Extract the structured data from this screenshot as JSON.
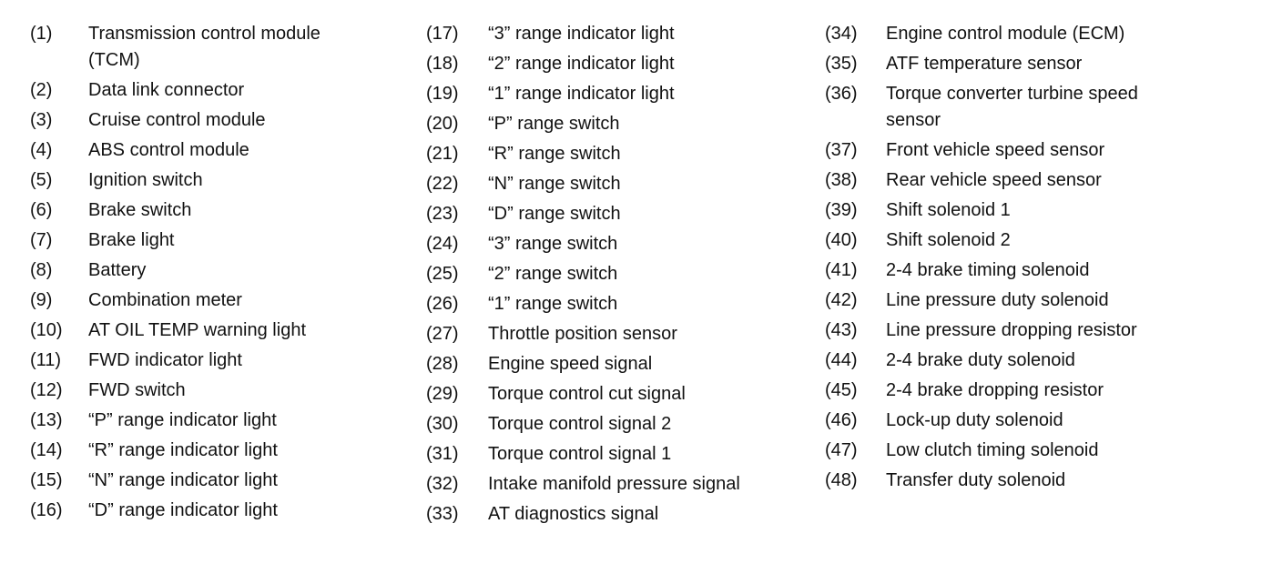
{
  "columns": [
    [
      {
        "num": "(1)",
        "lines": [
          "Transmission control module",
          "(TCM)"
        ]
      },
      {
        "num": "(2)",
        "lines": [
          "Data link connector"
        ]
      },
      {
        "num": "(3)",
        "lines": [
          "Cruise control module"
        ]
      },
      {
        "num": "(4)",
        "lines": [
          "ABS control module"
        ]
      },
      {
        "num": "(5)",
        "lines": [
          "Ignition switch"
        ]
      },
      {
        "num": "(6)",
        "lines": [
          "Brake switch"
        ]
      },
      {
        "num": "(7)",
        "lines": [
          "Brake light"
        ]
      },
      {
        "num": "(8)",
        "lines": [
          "Battery"
        ]
      },
      {
        "num": "(9)",
        "lines": [
          "Combination meter"
        ]
      },
      {
        "num": "(10)",
        "lines": [
          "AT OIL TEMP warning light"
        ]
      },
      {
        "num": "(11)",
        "lines": [
          "FWD indicator light"
        ]
      },
      {
        "num": "(12)",
        "lines": [
          "FWD switch"
        ]
      },
      {
        "num": "(13)",
        "lines": [
          "“P” range indicator light"
        ]
      },
      {
        "num": "(14)",
        "lines": [
          "“R” range indicator light"
        ]
      },
      {
        "num": "(15)",
        "lines": [
          "“N” range indicator light"
        ]
      },
      {
        "num": "(16)",
        "lines": [
          "“D” range indicator light"
        ]
      }
    ],
    [
      {
        "num": "(17)",
        "lines": [
          "“3” range indicator light"
        ]
      },
      {
        "num": "(18)",
        "lines": [
          "“2” range indicator light"
        ]
      },
      {
        "num": "(19)",
        "lines": [
          "“1” range indicator light"
        ]
      },
      {
        "num": "(20)",
        "lines": [
          "“P” range switch"
        ]
      },
      {
        "num": "(21)",
        "lines": [
          "“R” range switch"
        ]
      },
      {
        "num": "(22)",
        "lines": [
          "“N” range switch"
        ]
      },
      {
        "num": "(23)",
        "lines": [
          "“D” range switch"
        ]
      },
      {
        "num": "(24)",
        "lines": [
          "“3” range switch"
        ]
      },
      {
        "num": "(25)",
        "lines": [
          "“2” range switch"
        ]
      },
      {
        "num": "(26)",
        "lines": [
          "“1” range switch"
        ]
      },
      {
        "num": "(27)",
        "lines": [
          "Throttle position sensor"
        ]
      },
      {
        "num": "(28)",
        "lines": [
          "Engine speed signal"
        ]
      },
      {
        "num": "(29)",
        "lines": [
          "Torque control cut signal"
        ]
      },
      {
        "num": "(30)",
        "lines": [
          "Torque control signal 2"
        ]
      },
      {
        "num": "(31)",
        "lines": [
          "Torque control signal 1"
        ]
      },
      {
        "num": "(32)",
        "lines": [
          "Intake manifold pressure signal"
        ]
      },
      {
        "num": "(33)",
        "lines": [
          "AT diagnostics signal"
        ]
      }
    ],
    [
      {
        "num": "(34)",
        "lines": [
          "Engine control module (ECM)"
        ]
      },
      {
        "num": "(35)",
        "lines": [
          "ATF temperature sensor"
        ]
      },
      {
        "num": "(36)",
        "lines": [
          "Torque converter turbine speed",
          "sensor"
        ]
      },
      {
        "num": "(37)",
        "lines": [
          "Front vehicle speed sensor"
        ]
      },
      {
        "num": "(38)",
        "lines": [
          "Rear vehicle speed sensor"
        ]
      },
      {
        "num": "(39)",
        "lines": [
          "Shift solenoid 1"
        ]
      },
      {
        "num": "(40)",
        "lines": [
          "Shift solenoid 2"
        ]
      },
      {
        "num": "(41)",
        "lines": [
          "2-4 brake timing solenoid"
        ]
      },
      {
        "num": "(42)",
        "lines": [
          "Line pressure duty solenoid"
        ]
      },
      {
        "num": "(43)",
        "lines": [
          "Line pressure dropping resistor"
        ]
      },
      {
        "num": "(44)",
        "lines": [
          "2-4 brake duty solenoid"
        ]
      },
      {
        "num": "(45)",
        "lines": [
          "2-4 brake dropping resistor"
        ]
      },
      {
        "num": "(46)",
        "lines": [
          "Lock-up duty solenoid"
        ]
      },
      {
        "num": "(47)",
        "lines": [
          "Low clutch timing solenoid"
        ]
      },
      {
        "num": "(48)",
        "lines": [
          "Transfer duty solenoid"
        ]
      }
    ]
  ]
}
